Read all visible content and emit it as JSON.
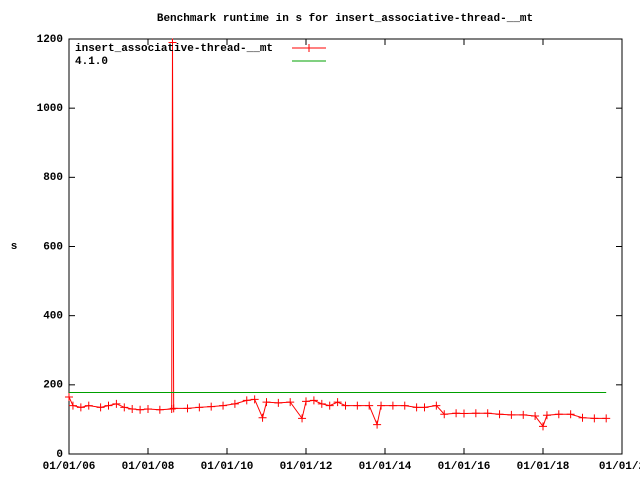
{
  "chart_data": {
    "type": "line",
    "title": "Benchmark runtime in s for insert_associative-thread-__mt",
    "ylabel": "s",
    "xlim": [
      2006,
      2020
    ],
    "xticks": [
      {
        "value": 2006,
        "label": "01/01/06"
      },
      {
        "value": 2008,
        "label": "01/01/08"
      },
      {
        "value": 2010,
        "label": "01/01/10"
      },
      {
        "value": 2012,
        "label": "01/01/12"
      },
      {
        "value": 2014,
        "label": "01/01/14"
      },
      {
        "value": 2016,
        "label": "01/01/16"
      },
      {
        "value": 2018,
        "label": "01/01/18"
      },
      {
        "value": 2020,
        "label": "01/01/2"
      }
    ],
    "ylim": [
      0,
      1200
    ],
    "yticks": [
      0,
      200,
      400,
      600,
      800,
      1000,
      1200
    ],
    "legend": "top-left",
    "series": [
      {
        "name": "insert_associative-thread-__mt",
        "color": "#ff0000",
        "markers": true,
        "x": [
          2006.0,
          2006.1,
          2006.3,
          2006.5,
          2006.8,
          2007.0,
          2007.2,
          2007.4,
          2007.6,
          2007.8,
          2008.0,
          2008.3,
          2008.6,
          2008.62,
          2008.65,
          2009.0,
          2009.3,
          2009.6,
          2009.9,
          2010.2,
          2010.5,
          2010.7,
          2010.9,
          2011.0,
          2011.3,
          2011.6,
          2011.9,
          2012.0,
          2012.2,
          2012.4,
          2012.6,
          2012.8,
          2013.0,
          2013.3,
          2013.6,
          2013.8,
          2013.9,
          2014.2,
          2014.5,
          2014.8,
          2015.0,
          2015.3,
          2015.5,
          2015.8,
          2016.0,
          2016.3,
          2016.6,
          2016.9,
          2017.2,
          2017.5,
          2017.8,
          2018.0,
          2018.1,
          2018.4,
          2018.7,
          2019.0,
          2019.3,
          2019.6
        ],
        "values": [
          165,
          140,
          135,
          140,
          135,
          140,
          145,
          135,
          130,
          128,
          130,
          128,
          130,
          1190,
          132,
          132,
          135,
          137,
          140,
          145,
          155,
          158,
          105,
          150,
          148,
          150,
          103,
          152,
          155,
          145,
          140,
          150,
          140,
          140,
          140,
          85,
          140,
          140,
          140,
          135,
          135,
          140,
          115,
          118,
          117,
          118,
          118,
          115,
          113,
          113,
          110,
          80,
          112,
          115,
          115,
          105,
          103,
          103
        ]
      },
      {
        "name": "4.1.0",
        "color": "#00a000",
        "markers": false,
        "x": [
          2006.0,
          2019.6
        ],
        "values": [
          178,
          178
        ]
      }
    ]
  }
}
